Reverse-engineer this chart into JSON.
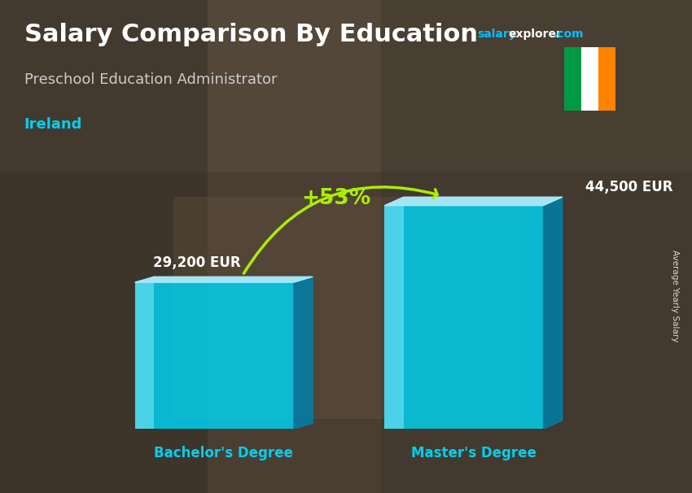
{
  "title": "Salary Comparison By Education",
  "subtitle": "Preschool Education Administrator",
  "country": "Ireland",
  "ylabel": "Average Yearly Salary",
  "categories": [
    "Bachelor's Degree",
    "Master's Degree"
  ],
  "values": [
    29200,
    44500
  ],
  "value_labels": [
    "29,200 EUR",
    "44,500 EUR"
  ],
  "pct_change": "+53%",
  "bar_color_main": "#00CFEE",
  "bar_color_light": "#80E8FF",
  "bar_color_dark": "#007FAA",
  "bar_color_top": "#AAEEFF",
  "country_color": "#00CFEE",
  "label_color": "#FFFFFF",
  "pct_color": "#AAEE00",
  "arrow_color": "#AAEE00",
  "brand_salary_color": "#00BFFF",
  "brand_com_color": "#00BFFF",
  "bar_alpha": 0.85,
  "figsize": [
    8.5,
    6.06
  ],
  "dpi": 100,
  "flag_green": "#009A44",
  "flag_white": "#FFFFFF",
  "flag_orange": "#FF8200"
}
